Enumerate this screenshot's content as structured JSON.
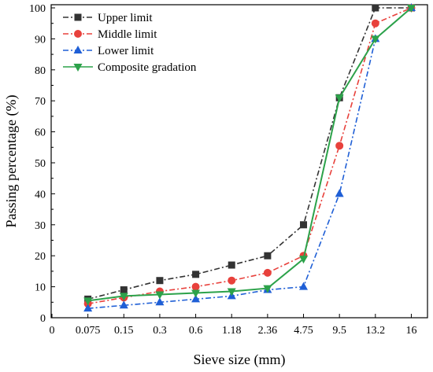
{
  "chart_data": {
    "type": "line",
    "xlabel": "Sieve size (mm)",
    "ylabel": "Passing percentage (%)",
    "x_ticks": [
      "0",
      "0.075",
      "0.15",
      "0.3",
      "0.6",
      "1.18",
      "2.36",
      "4.75",
      "9.5",
      "13.2",
      "16"
    ],
    "y_ticks": [
      "0",
      "10",
      "20",
      "30",
      "40",
      "50",
      "60",
      "70",
      "80",
      "90",
      "100"
    ],
    "ylim": [
      0,
      100
    ],
    "categories": [
      "0.075",
      "0.15",
      "0.3",
      "0.6",
      "1.18",
      "2.36",
      "4.75",
      "9.5",
      "13.2",
      "16"
    ],
    "legend_position": "top-left",
    "series": [
      {
        "name": "Upper limit",
        "values": [
          6,
          9,
          12,
          14,
          17,
          20,
          30,
          71,
          100,
          100
        ],
        "color": "#333333",
        "marker": "square",
        "dash": "dash-dot"
      },
      {
        "name": "Middle limit",
        "values": [
          4.5,
          6.5,
          8.5,
          10,
          12,
          14.5,
          20,
          55.5,
          95,
          100
        ],
        "color": "#e8413c",
        "marker": "circle",
        "dash": "dash-dot"
      },
      {
        "name": "Lower limit",
        "values": [
          3,
          4,
          5,
          6,
          7,
          9,
          10,
          40,
          90,
          100
        ],
        "color": "#1f5fd6",
        "marker": "triangle-up",
        "dash": "dash-dot"
      },
      {
        "name": "Composite gradation",
        "values": [
          5.5,
          7,
          7.5,
          8,
          8.5,
          9.5,
          19,
          71,
          90,
          100
        ],
        "color": "#2ca24a",
        "marker": "triangle-down",
        "dash": "solid"
      }
    ]
  }
}
